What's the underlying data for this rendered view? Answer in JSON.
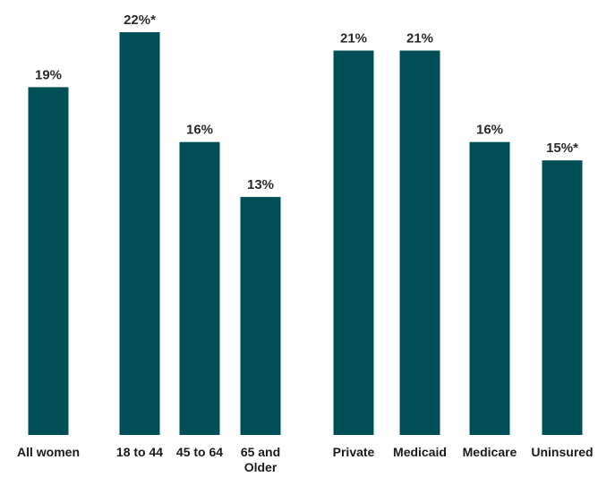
{
  "chart_data": {
    "type": "bar",
    "title": "",
    "xlabel": "",
    "ylabel": "",
    "ylim": [
      0,
      22
    ],
    "grid": false,
    "bar_color": "#004f57",
    "categories": [
      "All women",
      "18 to 44",
      "45 to 64",
      "65 and Older",
      "Private",
      "Medicaid",
      "Medicare",
      "Uninsured"
    ],
    "category_lines": [
      [
        "All women"
      ],
      [
        "18 to 44"
      ],
      [
        "45 to 64"
      ],
      [
        "65 and",
        "Older"
      ],
      [
        "Private"
      ],
      [
        "Medicaid"
      ],
      [
        "Medicare"
      ],
      [
        "Uninsured"
      ]
    ],
    "values": [
      19,
      22,
      16,
      13,
      21,
      21,
      16,
      15
    ],
    "data_labels": [
      "19%",
      "22%*",
      "16%",
      "13%",
      "21%",
      "21%",
      "16%",
      "15%*"
    ]
  }
}
